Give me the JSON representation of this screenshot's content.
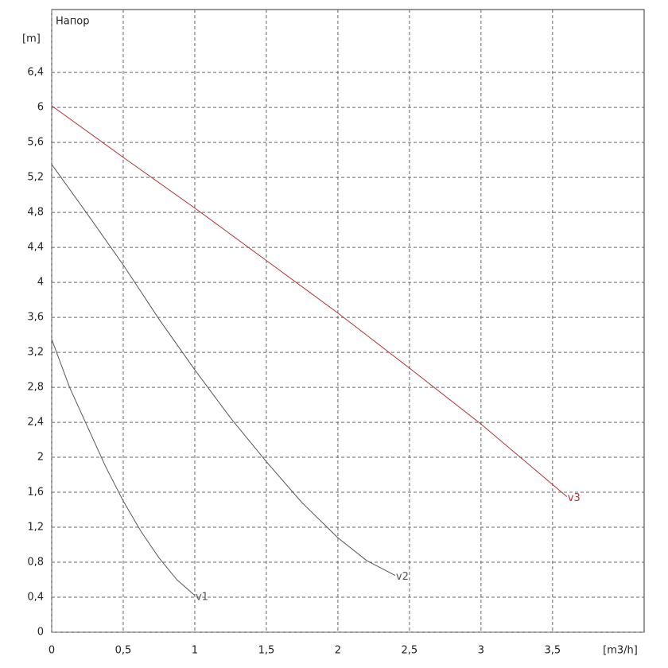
{
  "chart_data": {
    "type": "line",
    "title": "Напор",
    "y_label": "[m]",
    "x_label": "[m3/h]",
    "xlim": [
      0,
      4.14
    ],
    "ylim": [
      0,
      7.12
    ],
    "xticks": [
      0,
      {
        "value": 0.5,
        "label": "0,5"
      },
      1,
      {
        "value": 1.5,
        "label": "1,5"
      },
      2,
      {
        "value": 2.5,
        "label": "2,5"
      },
      3,
      {
        "value": 3.5,
        "label": "3,5"
      }
    ],
    "yticks": [
      0,
      {
        "value": 0.4,
        "label": "0,4"
      },
      {
        "value": 0.8,
        "label": "0,8"
      },
      {
        "value": 1.2,
        "label": "1,2"
      },
      {
        "value": 1.6,
        "label": "1,6"
      },
      2,
      {
        "value": 2.4,
        "label": "2,4"
      },
      {
        "value": 2.8,
        "label": "2,8"
      },
      {
        "value": 3.2,
        "label": "3,2"
      },
      {
        "value": 3.6,
        "label": "3,6"
      },
      4,
      {
        "value": 4.4,
        "label": "4,4"
      },
      {
        "value": 4.8,
        "label": "4,8"
      },
      {
        "value": 5.2,
        "label": "5,2"
      },
      {
        "value": 5.6,
        "label": "5,6"
      },
      6,
      {
        "value": 6.4,
        "label": "6,4"
      }
    ],
    "grid": true,
    "series": [
      {
        "name": "v1",
        "color": "#555555",
        "x": [
          0,
          0.125,
          0.25,
          0.375,
          0.5,
          0.625,
          0.75,
          0.875,
          1
        ],
        "values": [
          3.35,
          2.8,
          2.35,
          1.9,
          1.5,
          1.15,
          0.85,
          0.6,
          0.42
        ]
      },
      {
        "name": "v2",
        "color": "#555555",
        "x": [
          0,
          0.25,
          0.5,
          0.75,
          1,
          1.25,
          1.5,
          1.75,
          2,
          2.2,
          2.4
        ],
        "values": [
          5.35,
          4.78,
          4.2,
          3.58,
          3.0,
          2.45,
          1.95,
          1.48,
          1.08,
          0.82,
          0.65
        ]
      },
      {
        "name": "v3",
        "color": "#b03030",
        "x": [
          0,
          0.5,
          1,
          1.5,
          2,
          2.5,
          3,
          3.6
        ],
        "values": [
          6.02,
          5.43,
          4.85,
          4.25,
          3.65,
          3.02,
          2.38,
          1.55
        ]
      }
    ]
  }
}
